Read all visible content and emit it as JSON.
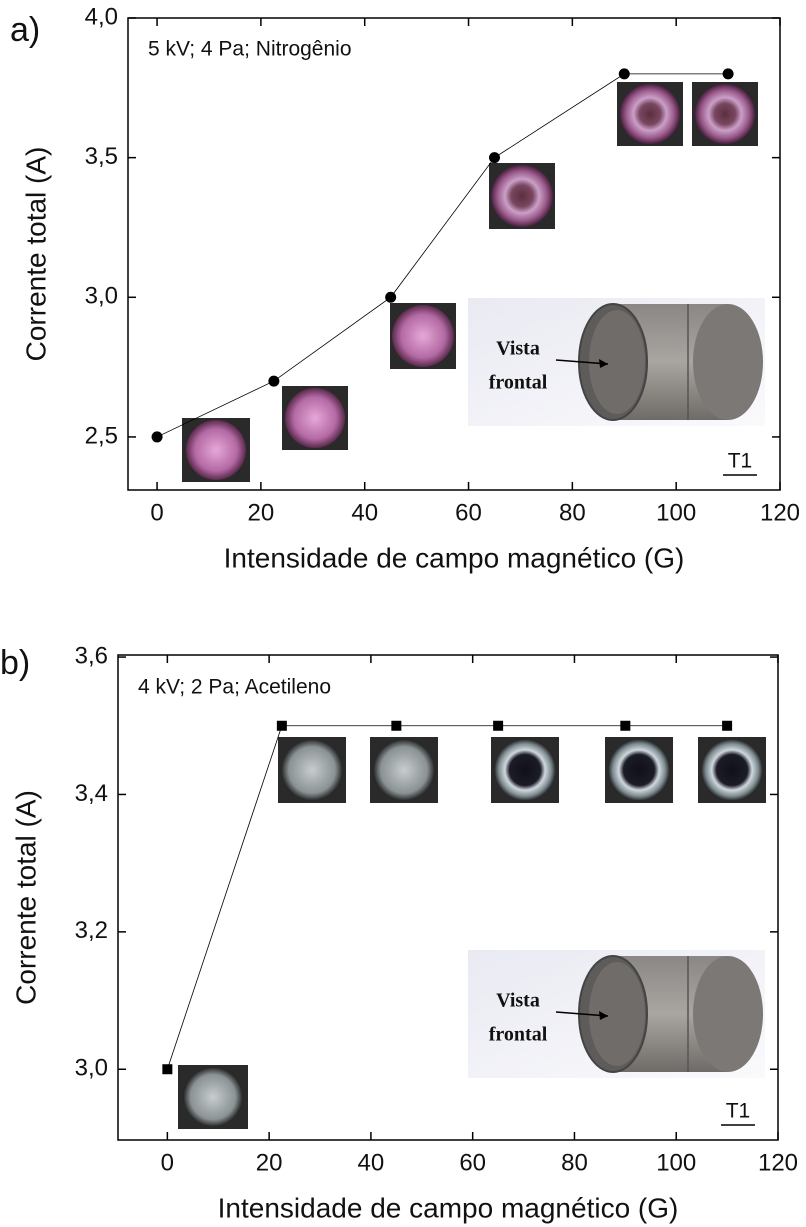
{
  "chart_data": [
    {
      "type": "line",
      "panel_label": "a)",
      "annotation": "5 kV; 4 Pa; Nitrogênio",
      "corner_label": "T1",
      "inset_label": [
        "Vista",
        "frontal"
      ],
      "xlabel": "Intensidade de campo magnético (G)",
      "ylabel": "Corrente total (A)",
      "x": [
        0,
        22.5,
        45,
        65,
        90,
        110
      ],
      "series": [
        {
          "values": [
            2.5,
            2.7,
            3.0,
            3.5,
            3.8,
            3.8
          ],
          "color": "#000000",
          "marker": "circle"
        }
      ],
      "xlim": [
        -5.6,
        120
      ],
      "ylim": [
        2.31,
        4.0
      ],
      "xticks": [
        0,
        20,
        40,
        60,
        80,
        100,
        120
      ],
      "yticks": [
        {
          "value": 2.5,
          "label": "2,5"
        },
        {
          "value": 3.0,
          "label": "3,0"
        },
        {
          "value": 3.5,
          "label": "3,5"
        },
        {
          "value": 4.0,
          "label": "4,0"
        }
      ]
    },
    {
      "type": "line",
      "panel_label": "b)",
      "annotation": "4 kV; 2 Pa; Acetileno",
      "corner_label": "T1",
      "inset_label": [
        "Vista",
        "frontal"
      ],
      "xlabel": "Intensidade de campo magnético (G)",
      "ylabel": "Corrente total (A)",
      "x": [
        0,
        22.5,
        45,
        65,
        90,
        110
      ],
      "series": [
        {
          "values": [
            3.0,
            3.5,
            3.5,
            3.5,
            3.5,
            3.5
          ],
          "color": "#000000",
          "marker": "square"
        }
      ],
      "xlim": [
        -9.7,
        120
      ],
      "ylim": [
        2.897,
        3.603
      ],
      "xticks": [
        0,
        20,
        40,
        60,
        80,
        100,
        120
      ],
      "yticks": [
        {
          "value": 3.0,
          "label": "3,0"
        },
        {
          "value": 3.2,
          "label": "3,2"
        },
        {
          "value": 3.4,
          "label": "3,4"
        },
        {
          "value": 3.6,
          "label": "3,6"
        }
      ]
    }
  ]
}
